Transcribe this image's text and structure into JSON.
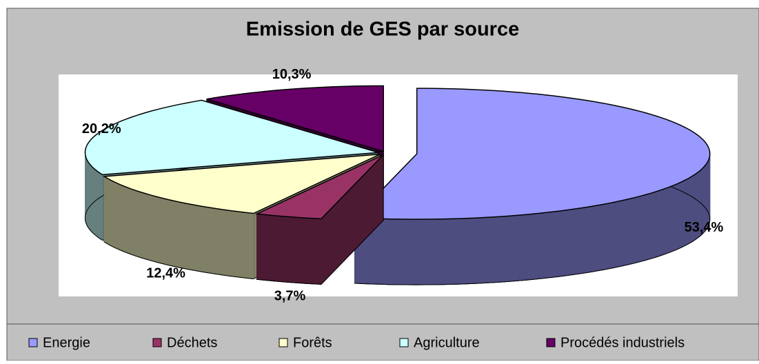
{
  "chart_data": {
    "type": "pie3d",
    "title": "Emission de GES par source",
    "categories": [
      "Energie",
      "Déchets",
      "Forêts",
      "Agriculture",
      "Procédés industriels"
    ],
    "values": [
      53.4,
      3.7,
      12.4,
      20.2,
      10.3
    ],
    "value_labels": [
      "53,4%",
      "3,7%",
      "12,4%",
      "20,2%",
      "10,3%"
    ],
    "colors": [
      "#9999ff",
      "#993366",
      "#ffffcc",
      "#ccffff",
      "#660066"
    ]
  }
}
